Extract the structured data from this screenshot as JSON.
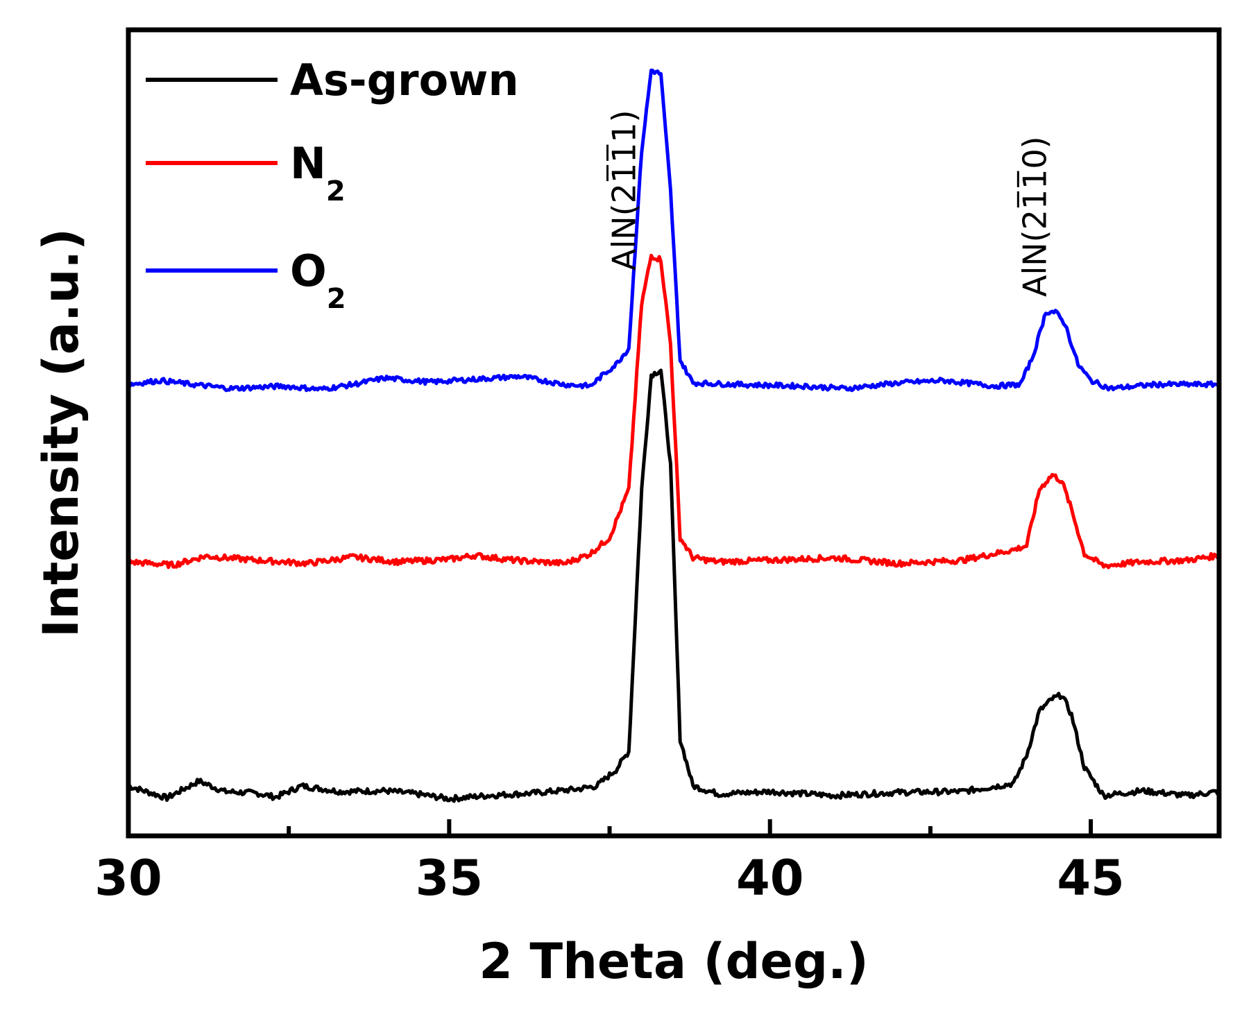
{
  "chart_data": {
    "type": "line",
    "title": "",
    "xlabel": "2 Theta (deg.)",
    "ylabel": "Intensity (a.u.)",
    "xlim": [
      30,
      47
    ],
    "ylim": [
      0,
      10
    ],
    "xticks": [
      30,
      35,
      40,
      45
    ],
    "xtick_labels": [
      "30",
      "35",
      "40",
      "45"
    ],
    "minor_xticks": [
      32.5,
      37.5,
      42.5
    ],
    "yticks_shown": false,
    "legend_position": "top-left",
    "series": [
      {
        "name": "As-grown",
        "name_main": "As-grown",
        "name_sub": "",
        "color": "#000000",
        "baseline": 0.55,
        "noise": 0.035,
        "x": [
          30.0,
          30.4,
          30.6,
          31.1,
          31.5,
          32.0,
          32.3,
          32.7,
          33.3,
          34.0,
          34.5,
          35.0,
          35.6,
          36.3,
          37.0,
          37.3,
          37.6,
          37.8,
          38.0,
          38.15,
          38.3,
          38.45,
          38.6,
          38.8,
          39.2,
          40.0,
          41.0,
          42.0,
          43.0,
          43.8,
          44.0,
          44.2,
          44.4,
          44.55,
          44.7,
          44.9,
          45.2,
          45.8,
          46.5,
          47.0
        ],
        "y": [
          0.62,
          0.52,
          0.47,
          0.68,
          0.55,
          0.53,
          0.48,
          0.62,
          0.55,
          0.56,
          0.52,
          0.46,
          0.5,
          0.53,
          0.58,
          0.62,
          0.82,
          1.05,
          4.3,
          5.72,
          5.78,
          4.6,
          1.2,
          0.62,
          0.52,
          0.55,
          0.5,
          0.54,
          0.55,
          0.65,
          1.0,
          1.55,
          1.7,
          1.75,
          1.5,
          0.85,
          0.5,
          0.56,
          0.5,
          0.55
        ]
      },
      {
        "name": "N2",
        "name_main": "N",
        "name_sub": "2",
        "color": "#ff0000",
        "baseline": 3.4,
        "noise": 0.035,
        "x": [
          30.0,
          30.7,
          31.2,
          32.0,
          32.8,
          33.5,
          34.2,
          35.0,
          35.4,
          36.0,
          36.8,
          37.2,
          37.5,
          37.8,
          38.0,
          38.15,
          38.3,
          38.45,
          38.6,
          38.8,
          39.2,
          40.0,
          41.0,
          42.0,
          43.0,
          43.8,
          44.0,
          44.2,
          44.4,
          44.55,
          44.7,
          44.9,
          45.2,
          45.8,
          46.5,
          47.0
        ],
        "y": [
          3.4,
          3.36,
          3.47,
          3.42,
          3.38,
          3.46,
          3.4,
          3.43,
          3.48,
          3.42,
          3.38,
          3.5,
          3.7,
          4.3,
          6.6,
          7.2,
          7.15,
          6.1,
          3.7,
          3.45,
          3.4,
          3.42,
          3.45,
          3.38,
          3.42,
          3.55,
          3.6,
          4.3,
          4.48,
          4.4,
          4.05,
          3.5,
          3.35,
          3.4,
          3.42,
          3.48
        ]
      },
      {
        "name": "O2",
        "name_main": "O",
        "name_sub": "2",
        "color": "#0000ff",
        "baseline": 5.6,
        "noise": 0.03,
        "x": [
          30.0,
          30.5,
          31.0,
          31.6,
          32.4,
          33.0,
          33.5,
          34.0,
          34.7,
          35.3,
          36.1,
          36.8,
          37.2,
          37.4,
          37.6,
          37.8,
          38.0,
          38.15,
          38.3,
          38.45,
          38.6,
          38.8,
          39.5,
          40.5,
          41.2,
          42.0,
          42.7,
          43.5,
          43.9,
          44.1,
          44.3,
          44.45,
          44.6,
          44.8,
          45.0,
          45.3,
          46.0,
          47.0
        ],
        "y": [
          5.6,
          5.65,
          5.6,
          5.55,
          5.58,
          5.54,
          5.6,
          5.68,
          5.63,
          5.66,
          5.7,
          5.6,
          5.58,
          5.72,
          5.85,
          6.05,
          8.5,
          9.5,
          9.45,
          8.0,
          5.9,
          5.62,
          5.6,
          5.58,
          5.55,
          5.62,
          5.65,
          5.58,
          5.6,
          5.95,
          6.5,
          6.5,
          6.35,
          5.85,
          5.65,
          5.55,
          5.6,
          5.6
        ]
      }
    ],
    "annotations": [
      {
        "text_prefix": "AlN(",
        "text_digits": "2111",
        "text_suffix": ")",
        "overline_digits": [
          1,
          2
        ],
        "x": 37.9
      },
      {
        "text_prefix": "AlN(",
        "text_digits": "2110",
        "text_suffix": ")",
        "overline_digits": [
          1,
          2
        ],
        "x": 44.3
      }
    ]
  }
}
